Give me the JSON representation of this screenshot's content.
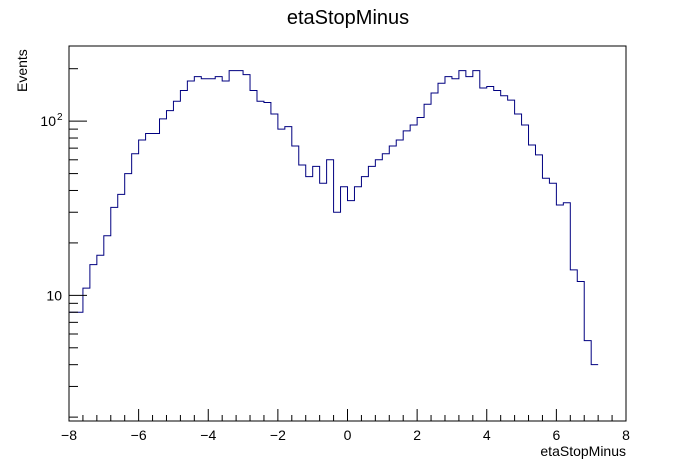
{
  "chart_data": {
    "type": "histogram",
    "title": "etaStopMinus",
    "xlabel": "etaStopMinus",
    "ylabel": "Events",
    "xlim": [
      -8,
      8
    ],
    "ylim": [
      1.9,
      270
    ],
    "y_scale": "log",
    "grid": false,
    "legend": "none",
    "line_color": "#000080",
    "x_ticks": [
      -8,
      -6,
      -4,
      -2,
      0,
      2,
      4,
      6,
      8
    ],
    "x_tick_labels": [
      "−8",
      "−6",
      "−4",
      "−2",
      "0",
      "2",
      "4",
      "6",
      "8"
    ],
    "y_tick_labels": [
      {
        "value": 10,
        "base": "10",
        "exp": ""
      },
      {
        "value": 100,
        "base": "10",
        "exp": "2"
      }
    ],
    "bin_width": 0.2,
    "bin_edges_start": -8,
    "values": [
      8,
      8,
      11,
      15,
      17,
      22,
      32,
      38,
      50,
      65,
      78,
      85,
      85,
      103,
      115,
      130,
      150,
      170,
      180,
      175,
      175,
      180,
      170,
      195,
      195,
      185,
      150,
      130,
      128,
      110,
      90,
      93,
      72,
      56,
      48,
      55,
      44,
      60,
      30,
      42,
      35,
      42,
      48,
      55,
      60,
      65,
      72,
      78,
      88,
      95,
      105,
      125,
      145,
      165,
      180,
      175,
      195,
      180,
      195,
      155,
      158,
      150,
      140,
      132,
      110,
      95,
      73,
      64,
      47,
      44,
      33,
      34,
      14,
      12,
      5.5,
      4
    ]
  }
}
